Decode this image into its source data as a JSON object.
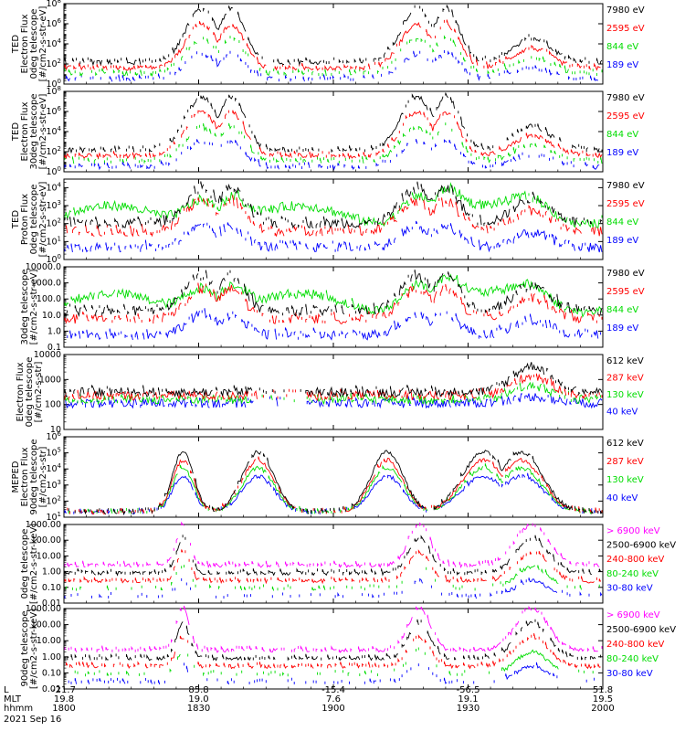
{
  "figure": {
    "date_label": "2021 Sep 16",
    "axis_row_labels": [
      "L",
      "MLT",
      "hhmm"
    ],
    "x_ticks": [
      {
        "L": "-21.7",
        "MLT": "19.8",
        "hhmm": "1800"
      },
      {
        "L": "85.8",
        "MLT": "19.0",
        "hhmm": "1830"
      },
      {
        "L": "-15.4",
        "MLT": "7.6",
        "hhmm": "1900"
      },
      {
        "L": "-56.5",
        "MLT": "19.1",
        "hhmm": "1930"
      },
      {
        "L": "51.8",
        "MLT": "19.5",
        "hhmm": "2000"
      }
    ]
  },
  "colors": {
    "blue": "#0000ff",
    "red": "#ff0000",
    "green": "#00dd00",
    "black": "#000000",
    "magenta": "#ff00ff"
  },
  "chart_data": [
    {
      "type": "line",
      "id": "ted-electron-0deg",
      "ylabel": [
        "TED",
        "Electron Flux",
        "0deg telescope",
        "[#/cm2-s-str-eV]"
      ],
      "yscale": "log",
      "ytick_labels": [
        "10^0",
        "10^2",
        "10^4",
        "10^6",
        "10^8"
      ],
      "yticks": [
        1,
        100,
        10000,
        1000000,
        100000000
      ],
      "ylim": [
        1,
        100000000
      ],
      "series": [
        {
          "name": "7980 eV",
          "color": "black"
        },
        {
          "name": "2595 eV",
          "color": "red"
        },
        {
          "name": "844 eV",
          "color": "green"
        },
        {
          "name": "189 eV",
          "color": "blue"
        }
      ]
    },
    {
      "type": "line",
      "id": "ted-electron-30deg",
      "ylabel": [
        "TED",
        "Electron Flux",
        "30deg telescope",
        "[#/cm2-s-str-eV]"
      ],
      "yscale": "log",
      "ytick_labels": [
        "10^0",
        "10^2",
        "10^4",
        "10^6",
        "10^8"
      ],
      "yticks": [
        1,
        100,
        10000,
        1000000,
        100000000
      ],
      "ylim": [
        1,
        100000000
      ],
      "series": [
        {
          "name": "7980 eV",
          "color": "black"
        },
        {
          "name": "2595 eV",
          "color": "red"
        },
        {
          "name": "844 eV",
          "color": "green"
        },
        {
          "name": "189 eV",
          "color": "blue"
        }
      ]
    },
    {
      "type": "line",
      "id": "ted-proton-0deg",
      "ylabel": [
        "TED",
        "Proton Flux",
        "0deg telescope",
        "[#/cm2-s-str-eV]"
      ],
      "yscale": "log",
      "ytick_labels": [
        "10^0",
        "10^1",
        "10^2",
        "10^3",
        "10^4"
      ],
      "yticks": [
        1,
        10,
        100,
        1000,
        10000
      ],
      "ylim": [
        1,
        30000
      ],
      "series": [
        {
          "name": "7980 eV",
          "color": "black"
        },
        {
          "name": "2595 eV",
          "color": "red"
        },
        {
          "name": "844 eV",
          "color": "green"
        },
        {
          "name": "189 eV",
          "color": "blue"
        }
      ]
    },
    {
      "type": "line",
      "id": "ted-proton-30deg",
      "ylabel": [
        "30deg telescope",
        "[#/cm2-s-str-eV]"
      ],
      "yscale": "log",
      "ytick_labels": [
        "0.1",
        "1.0",
        "10.0",
        "100.0",
        "1000.0",
        "10000.0"
      ],
      "yticks": [
        0.1,
        1,
        10,
        100,
        1000,
        10000
      ],
      "ylim": [
        0.1,
        10000
      ],
      "series": [
        {
          "name": "7980 eV",
          "color": "black"
        },
        {
          "name": "2595 eV",
          "color": "red"
        },
        {
          "name": "844 eV",
          "color": "green"
        },
        {
          "name": "189 eV",
          "color": "blue"
        }
      ]
    },
    {
      "type": "line",
      "id": "meped-electron-0deg",
      "ylabel": [
        "Electron Flux",
        "0deg telescope",
        "[#/cm2-s-str]"
      ],
      "yscale": "log",
      "ytick_labels": [
        "10",
        "100",
        "1000",
        "10000"
      ],
      "yticks": [
        10,
        100,
        1000,
        10000
      ],
      "ylim": [
        10,
        10000
      ],
      "series": [
        {
          "name": "612 keV",
          "color": "black"
        },
        {
          "name": "287 keV",
          "color": "red"
        },
        {
          "name": "130 keV",
          "color": "green"
        },
        {
          "name": "40 keV",
          "color": "blue"
        }
      ]
    },
    {
      "type": "line",
      "id": "meped-electron-90deg",
      "ylabel": [
        "MEPED",
        "Electron Flux",
        "90deg telescope",
        "[#/cm2-s-str]"
      ],
      "yscale": "log",
      "ytick_labels": [
        "10^1",
        "10^2",
        "10^3",
        "10^4",
        "10^5",
        "10^6"
      ],
      "yticks": [
        10,
        100,
        1000,
        10000,
        100000,
        1000000
      ],
      "ylim": [
        10,
        1000000
      ],
      "series": [
        {
          "name": "612 keV",
          "color": "black"
        },
        {
          "name": "287 keV",
          "color": "red"
        },
        {
          "name": "130 keV",
          "color": "green"
        },
        {
          "name": "40 keV",
          "color": "blue"
        }
      ]
    },
    {
      "type": "line",
      "id": "meped-proton-0deg",
      "ylabel": [
        "0deg telescope",
        "[#/cm2-s-str-keV]"
      ],
      "yscale": "log",
      "ytick_labels": [
        "0.01",
        "0.10",
        "1.00",
        "10.00",
        "100.00",
        "1000.00"
      ],
      "yticks": [
        0.01,
        0.1,
        1,
        10,
        100,
        1000
      ],
      "ylim": [
        0.01,
        1000
      ],
      "series": [
        {
          "name": "> 6900 keV",
          "color": "magenta"
        },
        {
          "name": "2500-6900 keV",
          "color": "black"
        },
        {
          "name": "240-800 keV",
          "color": "red"
        },
        {
          "name": "80-240 keV",
          "color": "green"
        },
        {
          "name": "30-80 keV",
          "color": "blue"
        }
      ]
    },
    {
      "type": "line",
      "id": "meped-proton-90deg",
      "ylabel": [
        "90deg telescope",
        "[#/cm2-s-str-keV]"
      ],
      "yscale": "log",
      "ytick_labels": [
        "0.01",
        "0.10",
        "1.00",
        "10.00",
        "100.00",
        "1000.00"
      ],
      "yticks": [
        0.01,
        0.1,
        1,
        10,
        100,
        1000
      ],
      "ylim": [
        0.01,
        1000
      ],
      "series": [
        {
          "name": "> 6900 keV",
          "color": "magenta"
        },
        {
          "name": "2500-6900 keV",
          "color": "black"
        },
        {
          "name": "240-800 keV",
          "color": "red"
        },
        {
          "name": "80-240 keV",
          "color": "green"
        },
        {
          "name": "30-80 keV",
          "color": "blue"
        }
      ]
    }
  ]
}
